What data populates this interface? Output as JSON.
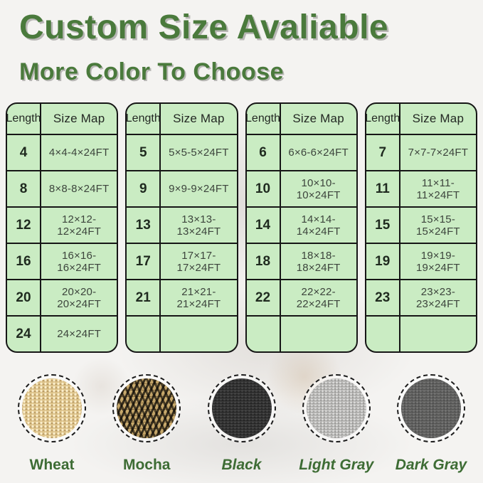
{
  "header": {
    "title": "Custom Size Avaliable",
    "subtitle": "More Color To Choose"
  },
  "table_section": {
    "tables": [
      {
        "headers": [
          "Length",
          "Size Map"
        ],
        "rows": [
          [
            "4",
            "4×4-4×24FT"
          ],
          [
            "8",
            "8×8-8×24FT"
          ],
          [
            "12",
            "12×12-12×24FT"
          ],
          [
            "16",
            "16×16-16×24FT"
          ],
          [
            "20",
            "20×20-20×24FT"
          ],
          [
            "24",
            "24×24FT"
          ]
        ]
      },
      {
        "headers": [
          "Length",
          "Size Map"
        ],
        "rows": [
          [
            "5",
            "5×5-5×24FT"
          ],
          [
            "9",
            "9×9-9×24FT"
          ],
          [
            "13",
            "13×13-13×24FT"
          ],
          [
            "17",
            "17×17-17×24FT"
          ],
          [
            "21",
            "21×21-21×24FT"
          ],
          [
            "",
            ""
          ]
        ]
      },
      {
        "headers": [
          "Length",
          "Size Map"
        ],
        "rows": [
          [
            "6",
            "6×6-6×24FT"
          ],
          [
            "10",
            "10×10-10×24FT"
          ],
          [
            "14",
            "14×14-14×24FT"
          ],
          [
            "18",
            "18×18-18×24FT"
          ],
          [
            "22",
            "22×22-22×24FT"
          ],
          [
            "",
            ""
          ]
        ]
      },
      {
        "headers": [
          "Length",
          "Size Map"
        ],
        "rows": [
          [
            "7",
            "7×7-7×24FT"
          ],
          [
            "11",
            "11×11-11×24FT"
          ],
          [
            "15",
            "15×15-15×24FT"
          ],
          [
            "19",
            "19×19-19×24FT"
          ],
          [
            "23",
            "23×23-23×24FT"
          ],
          [
            "",
            ""
          ]
        ]
      }
    ]
  },
  "swatch_section": {
    "swatches": [
      {
        "label": "Wheat",
        "texture": "wheat",
        "italic": false,
        "base_color": "#d4b87e"
      },
      {
        "label": "Mocha",
        "texture": "mocha",
        "italic": false,
        "base_color": "#40351f"
      },
      {
        "label": "Black",
        "texture": "black",
        "italic": true,
        "base_color": "#2d2d2d"
      },
      {
        "label": "Light Gray",
        "texture": "lightgray",
        "italic": true,
        "base_color": "#b2b1af"
      },
      {
        "label": "Dark Gray",
        "texture": "darkgray",
        "italic": true,
        "base_color": "#5e5e5d"
      }
    ]
  },
  "colors": {
    "accent_green_text": "#4a7a3c",
    "swatch_label_green": "#3d6c34",
    "table_background": "#caecc3",
    "table_border": "#161616",
    "page_background": "#f4f3f1"
  }
}
